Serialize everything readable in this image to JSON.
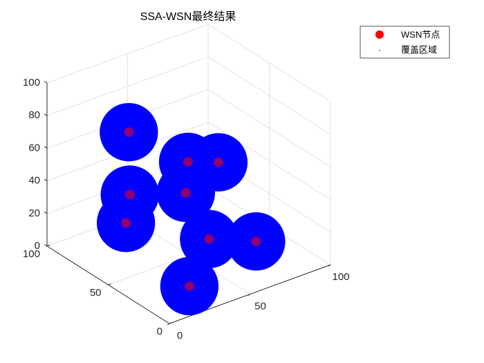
{
  "chart_data": {
    "type": "scatter3d",
    "title": "SSA-WSN最终结果",
    "xlim": [
      0,
      100
    ],
    "ylim": [
      0,
      100
    ],
    "zlim": [
      0,
      100
    ],
    "xticks": [
      0,
      50,
      100
    ],
    "yticks": [
      0,
      50,
      100
    ],
    "zticks": [
      0,
      20,
      40,
      60,
      80,
      100
    ],
    "grid": true,
    "legend": "top-right",
    "series": [
      {
        "name": "WSN节点",
        "color": "#ff0000",
        "x": [
          28,
          42,
          76,
          21,
          33,
          11,
          55,
          69,
          20
        ],
        "y": [
          70,
          40,
          60,
          60,
          30,
          50,
          40,
          20,
          10
        ],
        "z": [
          74,
          65,
          43,
          43,
          54,
          34,
          13,
          16,
          11
        ]
      },
      {
        "name": "覆盖区域",
        "color": "#0000ff",
        "radius": 17
      }
    ]
  }
}
